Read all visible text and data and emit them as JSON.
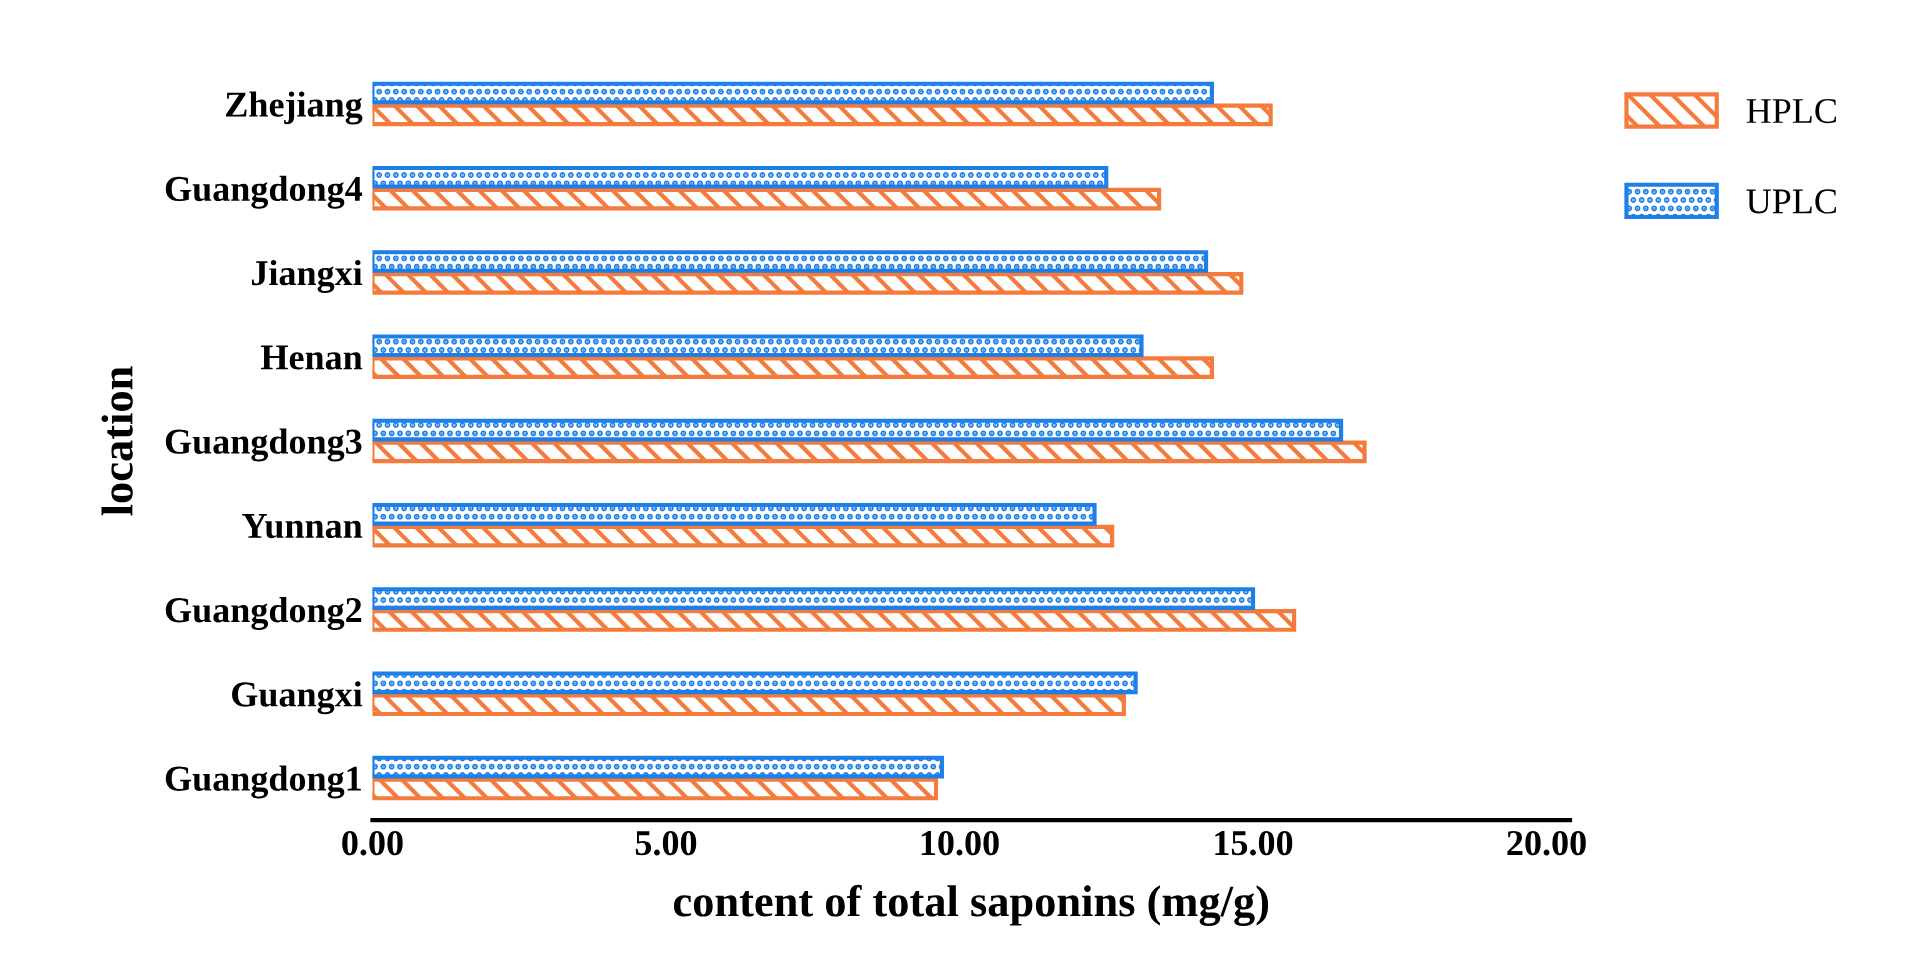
{
  "chart_data": {
    "type": "bar",
    "orientation": "horizontal",
    "categories": [
      "Zhejiang",
      "Guangdong4",
      "Jiangxi",
      "Henan",
      "Guangdong3",
      "Yunnan",
      "Guangdong2",
      "Guangxi",
      "Guangdong1"
    ],
    "series": [
      {
        "name": "HPLC",
        "color": "#f47b3b",
        "values": [
          15.3,
          13.4,
          14.8,
          14.3,
          16.9,
          12.6,
          15.7,
          12.8,
          9.6
        ]
      },
      {
        "name": "UPLC",
        "color": "#1e7fe8",
        "values": [
          14.3,
          12.5,
          14.2,
          13.1,
          16.5,
          12.3,
          15.0,
          13.0,
          9.7
        ]
      }
    ],
    "xlabel": "content of total saponins (mg/g)",
    "ylabel": "location",
    "xlim": [
      0,
      20.4
    ],
    "xticks": [
      {
        "value": 0,
        "label": "0.00"
      },
      {
        "value": 5,
        "label": "5.00"
      },
      {
        "value": 10,
        "label": "10.00"
      },
      {
        "value": 15,
        "label": "15.00"
      },
      {
        "value": 20,
        "label": "20.00"
      }
    ],
    "grid": false,
    "legend": "top right"
  }
}
